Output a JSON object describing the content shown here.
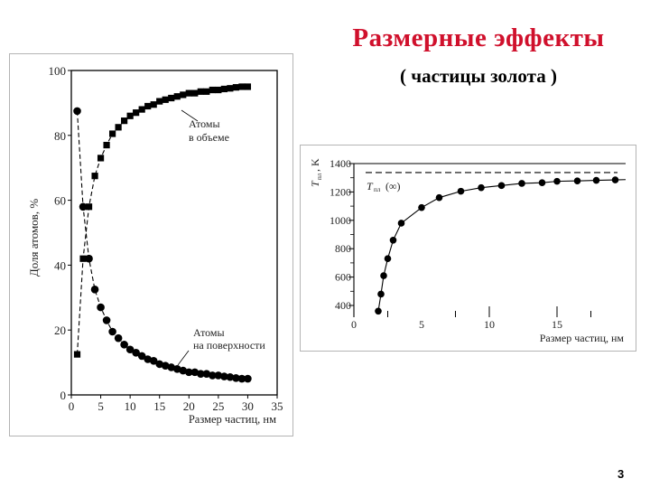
{
  "slide": {
    "title": "Размерные эффекты",
    "subtitle": "( частицы золота )",
    "page_number": "3",
    "title_color": "#d0102c"
  },
  "chart_data": [
    {
      "type": "scatter",
      "title": "",
      "xlabel": "Размер частиц, нм",
      "ylabel": "Доля атомов, %",
      "xlim": [
        0,
        35
      ],
      "ylim": [
        0,
        100
      ],
      "xticks": [
        0,
        5,
        10,
        15,
        20,
        25,
        30,
        35
      ],
      "yticks": [
        0,
        20,
        40,
        60,
        80,
        100
      ],
      "grid": false,
      "annotations": [
        "Атомы в объеме",
        "Атомы на поверхности"
      ],
      "series": [
        {
          "name": "Атомы в объеме",
          "marker": "square",
          "x": [
            1,
            2,
            3,
            4,
            5,
            6,
            7,
            8,
            9,
            10,
            11,
            12,
            13,
            14,
            15,
            16,
            17,
            18,
            19,
            20,
            21,
            22,
            23,
            24,
            25,
            26,
            27,
            28,
            29,
            30
          ],
          "values": [
            12.5,
            42,
            58,
            67.5,
            73,
            77,
            80.5,
            82.5,
            84.5,
            86,
            87,
            88,
            89,
            89.5,
            90.5,
            91,
            91.5,
            92,
            92.5,
            93,
            93,
            93.5,
            93.5,
            94,
            94,
            94.3,
            94.5,
            94.8,
            95,
            95
          ]
        },
        {
          "name": "Атомы на поверхности",
          "marker": "circle",
          "x": [
            1,
            2,
            3,
            4,
            5,
            6,
            7,
            8,
            9,
            10,
            11,
            12,
            13,
            14,
            15,
            16,
            17,
            18,
            19,
            20,
            21,
            22,
            23,
            24,
            25,
            26,
            27,
            28,
            29,
            30
          ],
          "values": [
            87.5,
            58,
            42,
            32.5,
            27,
            23,
            19.5,
            17.5,
            15.5,
            14,
            13,
            12,
            11,
            10.5,
            9.5,
            9,
            8.5,
            8,
            7.5,
            7,
            7,
            6.5,
            6.5,
            6,
            6,
            5.7,
            5.5,
            5.2,
            5,
            5
          ]
        }
      ]
    },
    {
      "type": "line",
      "title": "",
      "xlabel": "Размер частиц, нм",
      "ylabel": "T_пл, K",
      "xlim": [
        0,
        20
      ],
      "ylim": [
        300,
        1400
      ],
      "xticks": [
        0,
        5,
        10,
        15
      ],
      "yticks": [
        400,
        600,
        800,
        1000,
        1200,
        1400
      ],
      "grid": false,
      "annotations": [
        "T_пл (∞)"
      ],
      "reference_line": {
        "name": "T_пл (∞)",
        "value": 1337,
        "style": "dashed"
      },
      "series": [
        {
          "name": "T_пл",
          "marker": "circle",
          "x": [
            1.8,
            2.0,
            2.2,
            2.5,
            2.9,
            3.5,
            5.0,
            6.3,
            7.9,
            9.4,
            10.9,
            12.4,
            13.9,
            15.0,
            16.5,
            17.9,
            19.3
          ],
          "values": [
            360,
            480,
            610,
            730,
            860,
            980,
            1090,
            1160,
            1205,
            1230,
            1245,
            1260,
            1265,
            1275,
            1278,
            1282,
            1285
          ]
        }
      ]
    }
  ],
  "left_chart": {
    "ylabel": "Доля атомов, %",
    "xlabel": "Размер частиц, нм",
    "label_volume_1": "Атомы",
    "label_volume_2": "в объеме",
    "label_surface_1": "Атомы",
    "label_surface_2": "на поверхности",
    "yticks": [
      "0",
      "20",
      "40",
      "60",
      "80",
      "100"
    ],
    "xticks": [
      "0",
      "5",
      "10",
      "15",
      "20",
      "25",
      "30",
      "35"
    ]
  },
  "right_chart": {
    "ylabel_T": "T",
    "ylabel_sub": "пл",
    "ylabel_unit": ", K",
    "xlabel": "Размер частиц, нм",
    "ref_label_T": "T",
    "ref_label_sub": "пл",
    "ref_label_inf": "(∞)",
    "yticks": [
      "400",
      "600",
      "800",
      "1000",
      "1200",
      "1400"
    ],
    "xticks": [
      "0",
      "5",
      "10",
      "15"
    ]
  }
}
